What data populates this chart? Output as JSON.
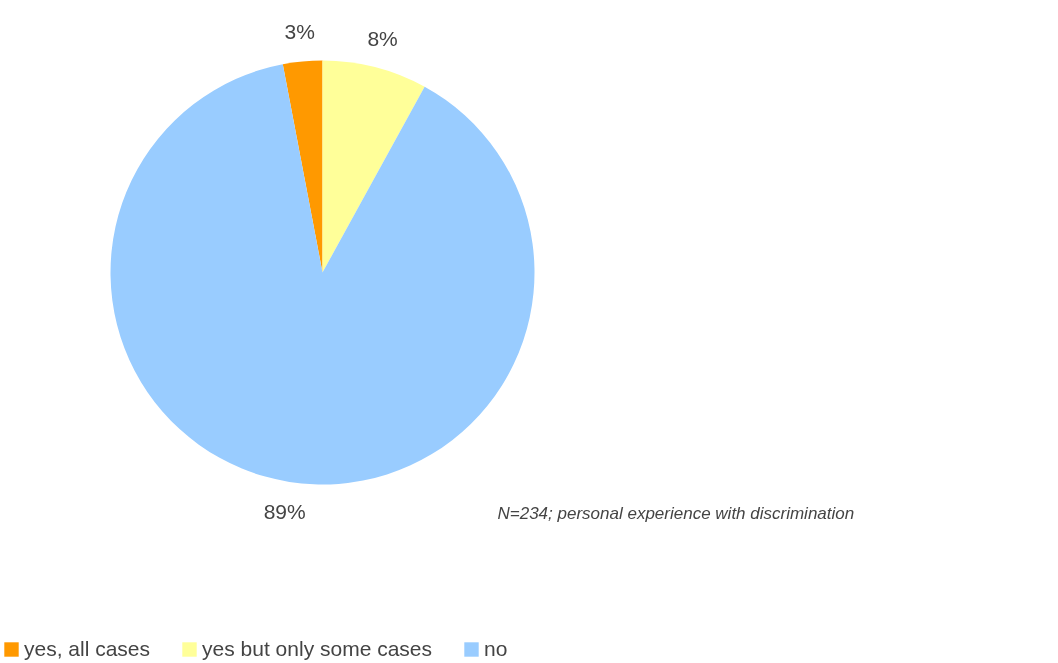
{
  "chart_data": {
    "type": "pie",
    "categories": [
      "yes, all cases",
      "yes but only some cases",
      "no"
    ],
    "values": [
      3,
      8,
      89
    ],
    "colors": [
      "#ff9900",
      "#ffff99",
      "#99ccff"
    ],
    "value_labels": [
      "3%",
      "8%",
      "89%"
    ],
    "legend": "bottom",
    "annotations": [
      "N=234; personal experience with discrimination"
    ]
  }
}
